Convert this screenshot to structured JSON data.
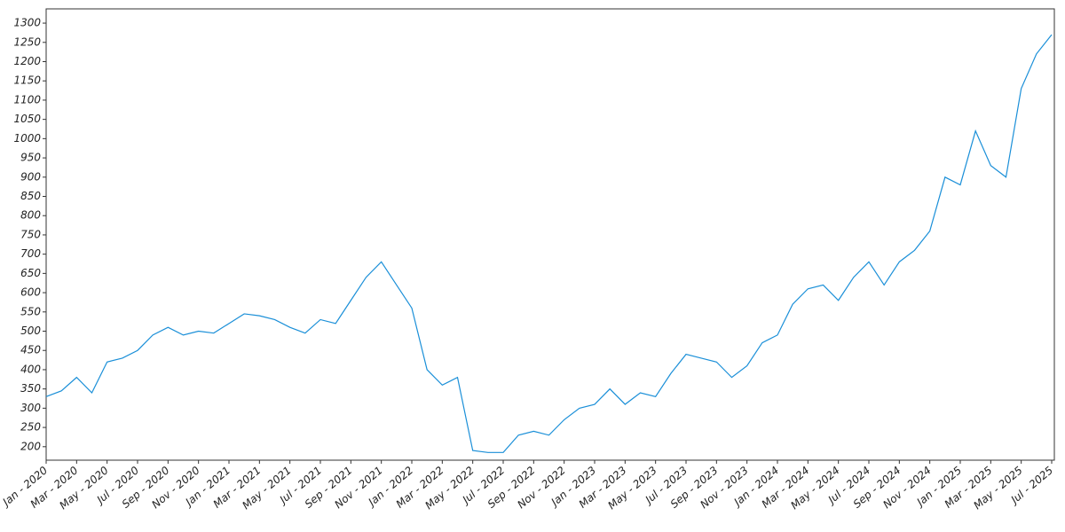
{
  "chart_data": {
    "type": "line",
    "categories": [
      "Jan - 2020",
      null,
      "Mar - 2020",
      null,
      "May - 2020",
      null,
      "Jul - 2020",
      null,
      "Sep - 2020",
      null,
      "Nov - 2020",
      null,
      "Jan - 2021",
      null,
      "Mar - 2021",
      null,
      "May - 2021",
      null,
      "Jul - 2021",
      null,
      "Sep - 2021",
      null,
      "Nov - 2021",
      null,
      "Jan - 2022",
      null,
      "Mar - 2022",
      null,
      "May - 2022",
      null,
      "Jul - 2022",
      null,
      "Sep - 2022",
      null,
      "Nov - 2022",
      null,
      "Jan - 2023",
      null,
      "Mar - 2023",
      null,
      "May - 2023",
      null,
      "Jul - 2023",
      null,
      "Sep - 2023",
      null,
      "Nov - 2023",
      null,
      "Jan - 2024",
      null,
      "Mar - 2024",
      null,
      "May - 2024",
      null,
      "Jul - 2024",
      null,
      "Sep - 2024",
      null,
      "Nov - 2024",
      null,
      "Jan - 2025",
      null,
      "Mar - 2025",
      null,
      "May - 2025",
      null,
      "Jul - 2025"
    ],
    "values": [
      330,
      345,
      380,
      340,
      420,
      430,
      450,
      490,
      510,
      490,
      500,
      495,
      520,
      545,
      540,
      530,
      510,
      495,
      530,
      520,
      580,
      640,
      680,
      620,
      560,
      400,
      360,
      380,
      190,
      185,
      185,
      230,
      240,
      230,
      270,
      300,
      310,
      350,
      310,
      340,
      330,
      390,
      440,
      430,
      420,
      380,
      410,
      470,
      490,
      570,
      610,
      620,
      580,
      640,
      680,
      620,
      680,
      710,
      760,
      900,
      880,
      1020,
      930,
      900,
      1130,
      1220,
      1270
    ],
    "color": "#1a8fd8",
    "ylim": [
      165,
      1337
    ],
    "yticks": [
      200,
      250,
      300,
      350,
      400,
      450,
      500,
      550,
      600,
      650,
      700,
      750,
      800,
      850,
      900,
      950,
      1000,
      1050,
      1100,
      1150,
      1200,
      1250,
      1300
    ],
    "grid": false
  }
}
